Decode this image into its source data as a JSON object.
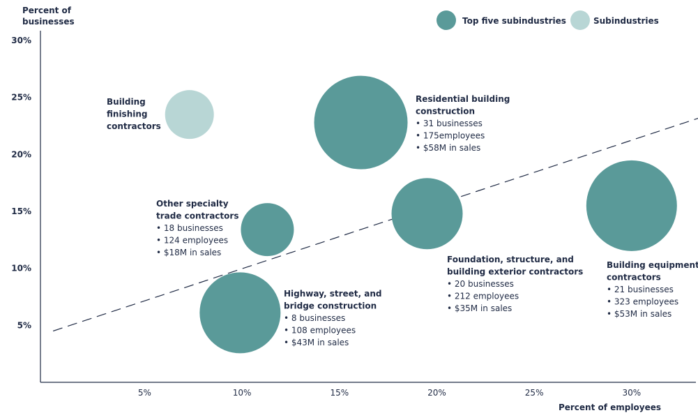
{
  "chart_data": {
    "type": "scatter",
    "xlabel": "Percent of employees",
    "ylabel": [
      "Percent of",
      "businesses"
    ],
    "xlim": [
      0,
      34
    ],
    "ylim": [
      0,
      30
    ],
    "x_ticks": [
      {
        "value": 5,
        "label": "5%"
      },
      {
        "value": 10,
        "label": "10%"
      },
      {
        "value": 15,
        "label": "15%"
      },
      {
        "value": 20,
        "label": "20%"
      },
      {
        "value": 25,
        "label": "25%"
      },
      {
        "value": 30,
        "label": "30%"
      }
    ],
    "y_ticks": [
      {
        "value": 5,
        "label": "5%"
      },
      {
        "value": 10,
        "label": "10%"
      },
      {
        "value": 15,
        "label": "15%"
      },
      {
        "value": 20,
        "label": "20%"
      },
      {
        "value": 25,
        "label": "25%"
      },
      {
        "value": 30,
        "label": "30%"
      }
    ],
    "legend": [
      {
        "name": "Top five subindustries",
        "color": "#5a9a99"
      },
      {
        "name": "Subindustries",
        "color": "#b8d6d5"
      }
    ],
    "trendline": {
      "x": [
        0.3,
        34
      ],
      "y": [
        4.5,
        23.5
      ],
      "style": "dashed",
      "color": "#1f2a44"
    },
    "points": [
      {
        "name": "Building finishing contractors",
        "x": 7.3,
        "y": 23.5,
        "size": 35,
        "group": "Subindustries",
        "title": [
          "Building",
          "finishing",
          "contractors"
        ],
        "lines": []
      },
      {
        "name": "Residential building construction",
        "x": 16.1,
        "y": 22.8,
        "size": 67,
        "group": "Top five subindustries",
        "title": [
          "Residential building",
          "construction"
        ],
        "lines": [
          "• 31 businesses",
          "• 175employees",
          "• $58M in sales"
        ]
      },
      {
        "name": "Other specialty trade contractors",
        "x": 11.3,
        "y": 13.4,
        "size": 38,
        "group": "Top five subindustries",
        "title": [
          "Other specialty",
          "trade contractors"
        ],
        "lines": [
          "• 18 businesses",
          "• 124 employees",
          "• $18M in sales"
        ]
      },
      {
        "name": "Foundation, structure, and building exterior contractors",
        "x": 19.5,
        "y": 14.8,
        "size": 51,
        "group": "Top five subindustries",
        "title": [
          "Foundation, structure, and",
          "building exterior contractors"
        ],
        "lines": [
          "• 20 businesses",
          "• 212 employees",
          "• $35M in sales"
        ]
      },
      {
        "name": "Building equipment contractors",
        "x": 30.0,
        "y": 15.5,
        "size": 65,
        "group": "Top five subindustries",
        "title": [
          "Building equipment",
          "contractors"
        ],
        "lines": [
          "• 21 businesses",
          "• 323 employees",
          "• $53M in sales"
        ]
      },
      {
        "name": "Highway, street, and bridge construction",
        "x": 9.9,
        "y": 6.1,
        "size": 58,
        "group": "Top five subindustries",
        "title": [
          "Highway, street, and",
          "bridge construction"
        ],
        "lines": [
          "• 8 businesses",
          "• 108 employees",
          "• $43M in sales"
        ]
      }
    ]
  }
}
